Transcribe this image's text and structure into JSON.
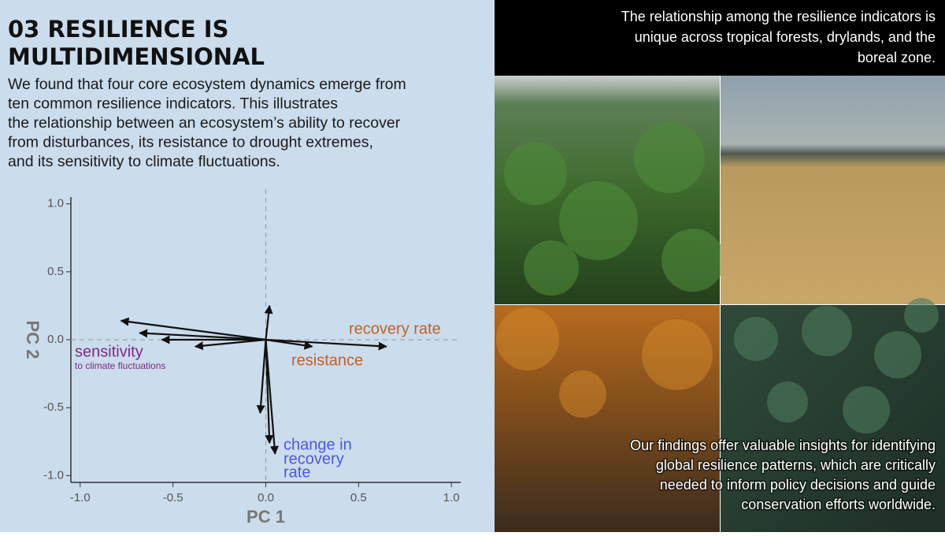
{
  "header": {
    "title": [
      "03 RESILIENCE IS",
      "MULTIDIMENSIONAL"
    ]
  },
  "body": [
    "We found that four core ecosystem dynamics emerge from",
    "ten common resilience indicators. This illustrates",
    "the relationship between an ecosystem’s ability to recover",
    "from disturbances, its resistance to drought extremes,",
    "and its sensitivity to climate fluctuations."
  ],
  "chart_data": {
    "type": "biplot",
    "xlabel": "PC 1",
    "ylabel": "PC 2",
    "color": "#111111",
    "x": [
      -0.78,
      -0.68,
      -0.56,
      -0.38,
      0.65,
      0.25,
      0.02,
      -0.03,
      0.02,
      0.05
    ],
    "values": [
      0.14,
      0.05,
      0.0,
      -0.05,
      -0.05,
      -0.05,
      0.25,
      -0.54,
      -0.76,
      -0.84
    ],
    "xlim": [
      -1.05,
      1.05
    ],
    "ylim": [
      -1.05,
      1.05
    ],
    "xticks": [
      {
        "value": -1,
        "label": "-1.0"
      },
      -0.5,
      {
        "value": 0,
        "label": "0.0"
      },
      0.5,
      {
        "value": 1,
        "label": "1.0"
      }
    ],
    "yticks": [
      {
        "value": -1,
        "label": "-1.0"
      },
      -0.5,
      {
        "value": 0,
        "label": "0.0"
      },
      0.5,
      {
        "value": 1,
        "label": "1.0"
      }
    ],
    "annotations": [
      {
        "text": "recovery rate",
        "color": "#c0612b"
      },
      {
        "text": "resistance",
        "color": "#c0612b"
      },
      {
        "text": "sensitivity",
        "color": "#7b2a86"
      },
      {
        "text": "to climate fluctuations",
        "color": "#7b2a86"
      },
      {
        "text": "change in",
        "color": "#4a5ad8"
      },
      {
        "text": "recovery",
        "color": "#4a5ad8"
      },
      {
        "text": "rate",
        "color": "#4a5ad8"
      }
    ]
  },
  "panels": {
    "top_text": [
      "The relationship among the resilience indicators is",
      "unique across tropical forests, drylands, and the",
      "boreal zone."
    ],
    "bottom_text": [
      "Our findings offer valuable insights for identifying",
      "global resilience patterns, which are critically",
      "needed to inform policy decisions and guide",
      "conservation efforts worldwide."
    ]
  }
}
